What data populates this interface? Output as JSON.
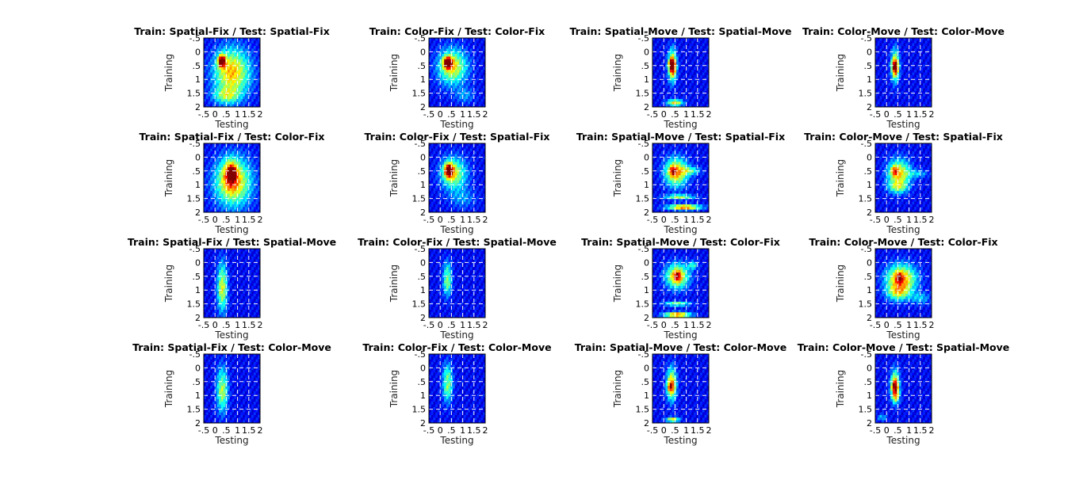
{
  "figure": {
    "background": "#ffffff",
    "colormap": "jet",
    "axis_ticks": [
      "-.5",
      "0",
      ".5",
      "1",
      "1.5",
      "2"
    ],
    "xlabel": "Testing",
    "ylabel": "Training"
  },
  "chart_data": [
    {
      "type": "heatmap",
      "title": "Train: Spatial-Fix / Test: Spatial-Fix",
      "xlabel": "Testing",
      "ylabel": "Training",
      "xlim": [
        -0.5,
        2
      ],
      "ylim": [
        2,
        -0.5
      ],
      "grid": true,
      "peak": {
        "x": 0.3,
        "y": 0.4,
        "value": 1.0
      },
      "blobs": [
        {
          "x": 0.75,
          "y": 0.75,
          "sx": 0.55,
          "sy": 0.6,
          "v": 0.58
        },
        {
          "x": 0.3,
          "y": 0.3,
          "sx": 0.12,
          "sy": 0.15,
          "v": 0.55
        },
        {
          "x": 0.5,
          "y": 1.6,
          "sx": 0.4,
          "sy": 0.2,
          "v": 0.3
        }
      ]
    },
    {
      "type": "heatmap",
      "title": "Train: Color-Fix / Test: Color-Fix",
      "xlabel": "Testing",
      "ylabel": "Training",
      "xlim": [
        -0.5,
        2
      ],
      "ylim": [
        2,
        -0.5
      ],
      "grid": true,
      "peak": {
        "x": 0.3,
        "y": 0.4,
        "value": 1.0
      },
      "blobs": [
        {
          "x": 0.55,
          "y": 0.55,
          "sx": 0.45,
          "sy": 0.45,
          "v": 0.5
        },
        {
          "x": 0.35,
          "y": 0.4,
          "sx": 0.15,
          "sy": 0.15,
          "v": 0.55
        },
        {
          "x": 1.1,
          "y": 1.6,
          "sx": 0.3,
          "sy": 0.2,
          "v": 0.15
        }
      ]
    },
    {
      "type": "heatmap",
      "title": "Train: Spatial-Move / Test: Spatial-Move",
      "xlabel": "Testing",
      "ylabel": "Training",
      "xlim": [
        -0.5,
        2
      ],
      "ylim": [
        2,
        -0.5
      ],
      "grid": true,
      "peak": {
        "x": 0.35,
        "y": 0.45,
        "value": 0.95
      },
      "blobs": [
        {
          "x": 0.38,
          "y": 0.5,
          "sx": 0.13,
          "sy": 0.4,
          "v": 0.6
        },
        {
          "x": 0.4,
          "y": 0.55,
          "sx": 0.1,
          "sy": 0.2,
          "v": 0.4
        },
        {
          "x": 0.5,
          "y": 1.85,
          "sx": 0.25,
          "sy": 0.08,
          "v": 0.55
        }
      ]
    },
    {
      "type": "heatmap",
      "title": "Train: Color-Move / Test: Color-Move",
      "xlabel": "Testing",
      "ylabel": "Training",
      "xlim": [
        -0.5,
        2
      ],
      "ylim": [
        2,
        -0.5
      ],
      "grid": true,
      "peak": {
        "x": 0.35,
        "y": 0.5,
        "value": 0.85
      },
      "blobs": [
        {
          "x": 0.38,
          "y": 0.5,
          "sx": 0.12,
          "sy": 0.4,
          "v": 0.55
        },
        {
          "x": 0.4,
          "y": 0.6,
          "sx": 0.1,
          "sy": 0.2,
          "v": 0.35
        }
      ]
    },
    {
      "type": "heatmap",
      "title": "Train: Spatial-Fix / Test: Color-Fix",
      "xlabel": "Testing",
      "ylabel": "Training",
      "xlim": [
        -0.5,
        2
      ],
      "ylim": [
        2,
        -0.5
      ],
      "grid": true,
      "peak": {
        "x": 0.75,
        "y": 0.55,
        "value": 0.98
      },
      "blobs": [
        {
          "x": 0.8,
          "y": 0.9,
          "sx": 0.55,
          "sy": 0.6,
          "v": 0.6
        },
        {
          "x": 0.7,
          "y": 0.6,
          "sx": 0.2,
          "sy": 0.3,
          "v": 0.45
        }
      ]
    },
    {
      "type": "heatmap",
      "title": "Train: Color-Fix / Test: Spatial-Fix",
      "xlabel": "Testing",
      "ylabel": "Training",
      "xlim": [
        -0.5,
        2
      ],
      "ylim": [
        2,
        -0.5
      ],
      "grid": true,
      "peak": {
        "x": 0.35,
        "y": 0.45,
        "value": 1.0
      },
      "blobs": [
        {
          "x": 0.6,
          "y": 0.6,
          "sx": 0.4,
          "sy": 0.4,
          "v": 0.45
        },
        {
          "x": 0.4,
          "y": 0.5,
          "sx": 0.15,
          "sy": 0.2,
          "v": 0.5
        },
        {
          "x": 1.0,
          "y": 1.5,
          "sx": 0.4,
          "sy": 0.25,
          "v": 0.15
        }
      ]
    },
    {
      "type": "heatmap",
      "title": "Train: Spatial-Move / Test: Spatial-Fix",
      "xlabel": "Testing",
      "ylabel": "Training",
      "xlim": [
        -0.5,
        2
      ],
      "ylim": [
        2,
        -0.5
      ],
      "grid": true,
      "peak": {
        "x": 0.4,
        "y": 0.5,
        "value": 0.95
      },
      "blobs": [
        {
          "x": 0.55,
          "y": 0.55,
          "sx": 0.35,
          "sy": 0.35,
          "v": 0.6
        },
        {
          "x": 0.9,
          "y": 1.82,
          "sx": 0.5,
          "sy": 0.07,
          "v": 0.7
        },
        {
          "x": 0.7,
          "y": 1.45,
          "sx": 0.45,
          "sy": 0.06,
          "v": 0.45
        },
        {
          "x": 1.2,
          "y": 0.5,
          "sx": 0.3,
          "sy": 0.1,
          "v": 0.3
        }
      ]
    },
    {
      "type": "heatmap",
      "title": "Train: Color-Move / Test: Spatial-Fix",
      "xlabel": "Testing",
      "ylabel": "Training",
      "xlim": [
        -0.5,
        2
      ],
      "ylim": [
        2,
        -0.5
      ],
      "grid": true,
      "peak": {
        "x": 0.35,
        "y": 0.5,
        "value": 0.95
      },
      "blobs": [
        {
          "x": 0.55,
          "y": 0.6,
          "sx": 0.35,
          "sy": 0.35,
          "v": 0.55
        },
        {
          "x": 0.5,
          "y": 1.1,
          "sx": 0.3,
          "sy": 0.15,
          "v": 0.3
        },
        {
          "x": 1.4,
          "y": 0.6,
          "sx": 0.3,
          "sy": 0.1,
          "v": 0.2
        }
      ]
    },
    {
      "type": "heatmap",
      "title": "Train: Spatial-Fix / Test: Spatial-Move",
      "xlabel": "Testing",
      "ylabel": "Training",
      "xlim": [
        -0.5,
        2
      ],
      "ylim": [
        2,
        -0.5
      ],
      "grid": true,
      "peak": {
        "x": 0.3,
        "y": 0.6,
        "value": 0.55
      },
      "blobs": [
        {
          "x": 0.32,
          "y": 0.9,
          "sx": 0.15,
          "sy": 0.6,
          "v": 0.5
        }
      ]
    },
    {
      "type": "heatmap",
      "title": "Train: Color-Fix / Test: Spatial-Move",
      "xlabel": "Testing",
      "ylabel": "Training",
      "xlim": [
        -0.5,
        2
      ],
      "ylim": [
        2,
        -0.5
      ],
      "grid": true,
      "peak": {
        "x": 0.3,
        "y": 0.5,
        "value": 0.5
      },
      "blobs": [
        {
          "x": 0.32,
          "y": 0.6,
          "sx": 0.13,
          "sy": 0.4,
          "v": 0.45
        }
      ]
    },
    {
      "type": "heatmap",
      "title": "Train: Spatial-Move / Test: Color-Fix",
      "xlabel": "Testing",
      "ylabel": "Training",
      "xlim": [
        -0.5,
        2
      ],
      "ylim": [
        2,
        -0.5
      ],
      "grid": true,
      "peak": {
        "x": 0.6,
        "y": 0.5,
        "value": 0.97
      },
      "blobs": [
        {
          "x": 0.6,
          "y": 0.5,
          "sx": 0.35,
          "sy": 0.3,
          "v": 0.6
        },
        {
          "x": 0.6,
          "y": 1.9,
          "sx": 0.4,
          "sy": 0.07,
          "v": 0.7
        },
        {
          "x": 0.6,
          "y": 1.5,
          "sx": 0.4,
          "sy": 0.06,
          "v": 0.4
        },
        {
          "x": 1.3,
          "y": 0.1,
          "sx": 0.15,
          "sy": 0.1,
          "v": 0.3
        }
      ]
    },
    {
      "type": "heatmap",
      "title": "Train: Color-Move / Test: Color-Fix",
      "xlabel": "Testing",
      "ylabel": "Training",
      "xlim": [
        -0.5,
        2
      ],
      "ylim": [
        2,
        -0.5
      ],
      "grid": true,
      "peak": {
        "x": 0.55,
        "y": 0.55,
        "value": 0.97
      },
      "blobs": [
        {
          "x": 0.65,
          "y": 0.6,
          "sx": 0.45,
          "sy": 0.35,
          "v": 0.65
        },
        {
          "x": 0.5,
          "y": 1.1,
          "sx": 0.35,
          "sy": 0.2,
          "v": 0.35
        },
        {
          "x": 1.5,
          "y": 1.3,
          "sx": 0.3,
          "sy": 0.15,
          "v": 0.2
        }
      ]
    },
    {
      "type": "heatmap",
      "title": "Train: Spatial-Fix / Test: Color-Move",
      "xlabel": "Testing",
      "ylabel": "Training",
      "xlim": [
        -0.5,
        2
      ],
      "ylim": [
        2,
        -0.5
      ],
      "grid": true,
      "peak": {
        "x": 0.3,
        "y": 0.5,
        "value": 0.55
      },
      "blobs": [
        {
          "x": 0.32,
          "y": 0.8,
          "sx": 0.17,
          "sy": 0.55,
          "v": 0.45
        }
      ]
    },
    {
      "type": "heatmap",
      "title": "Train: Color-Fix / Test: Color-Move",
      "xlabel": "Testing",
      "ylabel": "Training",
      "xlim": [
        -0.5,
        2
      ],
      "ylim": [
        2,
        -0.5
      ],
      "grid": true,
      "peak": {
        "x": 0.3,
        "y": 0.5,
        "value": 0.5
      },
      "blobs": [
        {
          "x": 0.33,
          "y": 0.55,
          "sx": 0.15,
          "sy": 0.45,
          "v": 0.45
        }
      ]
    },
    {
      "type": "heatmap",
      "title": "Train: Spatial-Move / Test: Color-Move",
      "xlabel": "Testing",
      "ylabel": "Training",
      "xlim": [
        -0.5,
        2
      ],
      "ylim": [
        2,
        -0.5
      ],
      "grid": true,
      "peak": {
        "x": 0.3,
        "y": 0.7,
        "value": 0.92
      },
      "blobs": [
        {
          "x": 0.35,
          "y": 0.6,
          "sx": 0.15,
          "sy": 0.4,
          "v": 0.6
        },
        {
          "x": 0.4,
          "y": 1.88,
          "sx": 0.2,
          "sy": 0.06,
          "v": 0.55
        }
      ]
    },
    {
      "type": "heatmap",
      "title": "Train: Color-Move / Test: Spatial-Move",
      "xlabel": "Testing",
      "ylabel": "Training",
      "xlim": [
        -0.5,
        2
      ],
      "ylim": [
        2,
        -0.5
      ],
      "grid": true,
      "peak": {
        "x": 0.35,
        "y": 0.65,
        "value": 0.9
      },
      "blobs": [
        {
          "x": 0.38,
          "y": 0.6,
          "sx": 0.13,
          "sy": 0.35,
          "v": 0.6
        },
        {
          "x": 0.4,
          "y": 1.0,
          "sx": 0.12,
          "sy": 0.2,
          "v": 0.4
        },
        {
          "x": -0.2,
          "y": 1.8,
          "sx": 0.15,
          "sy": 0.08,
          "v": 0.2
        }
      ]
    }
  ]
}
